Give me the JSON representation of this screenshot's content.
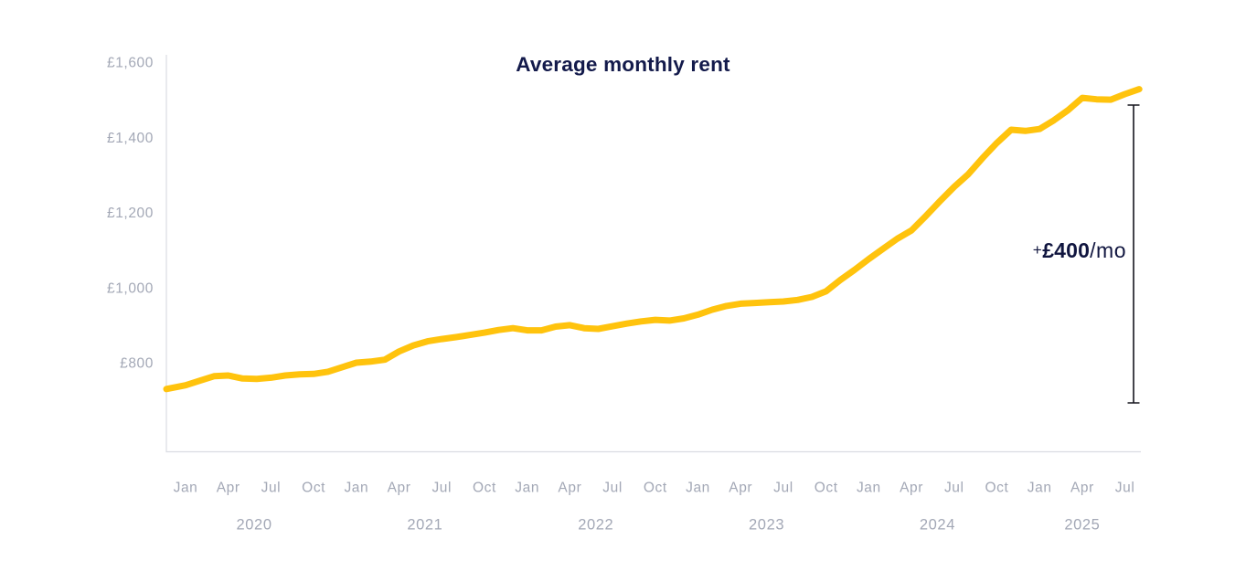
{
  "chart_data": {
    "type": "line",
    "title": "Average monthly rent",
    "ylabel": "",
    "xlabel": "",
    "currency": "£",
    "frequency": "monthly",
    "x_start_label": "Jan 2020",
    "x_end_label": "Aug 2025",
    "lead_in_value": 730,
    "series": [
      {
        "name": "Average monthly rent (£)",
        "values": [
          740,
          752,
          764,
          766,
          758,
          757,
          760,
          766,
          769,
          770,
          776,
          788,
          800,
          803,
          808,
          830,
          846,
          857,
          863,
          868,
          874,
          880,
          887,
          892,
          886,
          886,
          896,
          900,
          892,
          890,
          897,
          904,
          910,
          914,
          912,
          918,
          928,
          941,
          951,
          957,
          959,
          961,
          963,
          967,
          975,
          990,
          1020,
          1047,
          1076,
          1103,
          1130,
          1152,
          1190,
          1230,
          1268,
          1302,
          1345,
          1385,
          1420,
          1417,
          1422,
          1445,
          1472,
          1505,
          1501,
          1500,
          1515,
          1528
        ]
      }
    ],
    "x_tick_labels": [
      "Jan",
      "Apr",
      "Jul",
      "Oct",
      "Jan",
      "Apr",
      "Jul",
      "Oct",
      "Jan",
      "Apr",
      "Jul",
      "Oct",
      "Jan",
      "Apr",
      "Jul",
      "Oct",
      "Jan",
      "Apr",
      "Jul",
      "Oct",
      "Jan",
      "Apr",
      "Jul"
    ],
    "year_labels": [
      "2020",
      "2021",
      "2022",
      "2023",
      "2024",
      "2025"
    ],
    "y_ticks": [
      800,
      1000,
      1200,
      1400,
      1600
    ],
    "y_tick_labels": [
      "£800",
      "£1,000",
      "£1,200",
      "£1,400",
      "£1,600"
    ],
    "ylim": [
      560,
      1600
    ],
    "grid": false,
    "legend": false,
    "annotation": {
      "prefix": "+",
      "value": "£400",
      "suffix": "/mo"
    },
    "colors": {
      "line": "#ffc30d",
      "title": "#131a4b",
      "axis": "#dadce2",
      "tick_label": "#a3a8b6",
      "annotation_text": "#10153f",
      "bracket": "#16161f",
      "background": "#ffffff"
    }
  }
}
